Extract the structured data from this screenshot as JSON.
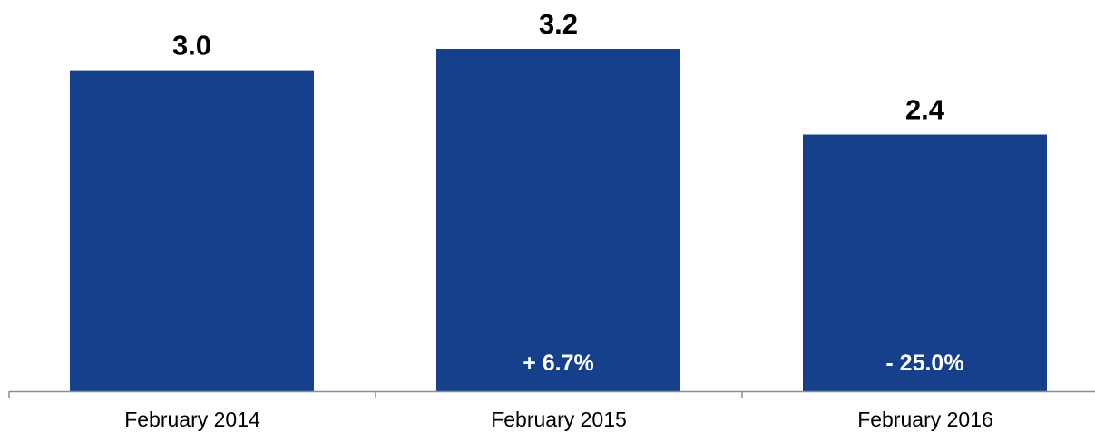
{
  "chart_data": {
    "type": "bar",
    "categories": [
      "February 2014",
      "February 2015",
      "February 2016"
    ],
    "values": [
      3.0,
      3.2,
      2.4
    ],
    "value_labels": [
      "3.0",
      "3.2",
      "2.4"
    ],
    "change_labels": [
      "",
      "+ 6.7%",
      "- 25.0%"
    ],
    "title": "",
    "xlabel": "",
    "ylabel": "",
    "ylim": [
      0,
      3.2
    ],
    "grid": false,
    "legend": "none",
    "colors": {
      "bar": "#163F8C",
      "axis": "#8C8C8C",
      "value_text": "#000000",
      "change_text": "#FFFFFF"
    }
  }
}
